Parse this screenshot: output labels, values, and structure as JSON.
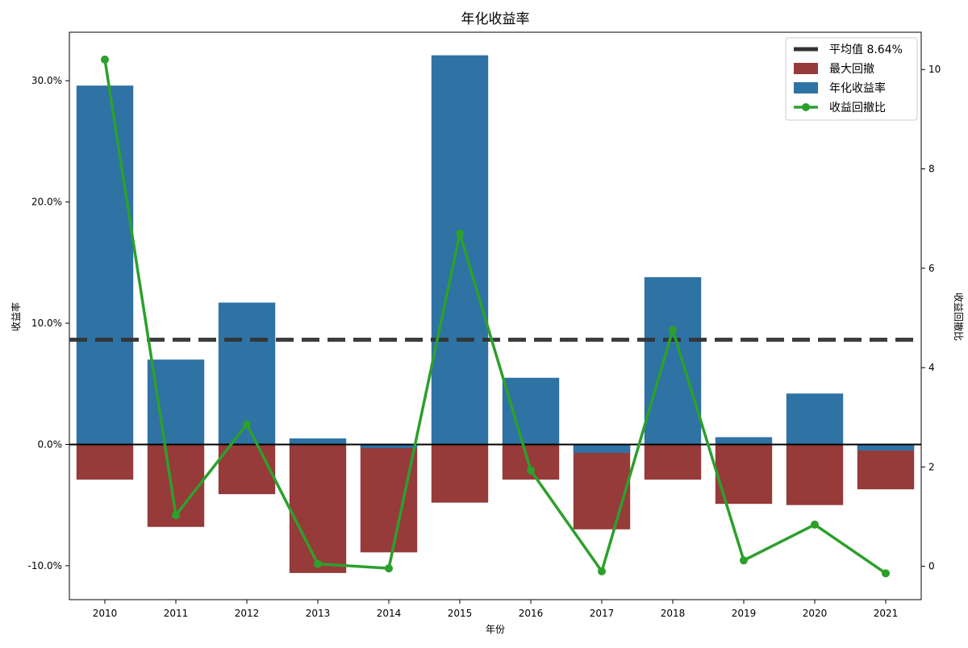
{
  "chart_data": {
    "type": "bar",
    "title": "年化收益率",
    "xlabel": "年份",
    "ylabel": "收益率",
    "y2label": "收益回撤比",
    "categories": [
      "2010",
      "2011",
      "2012",
      "2013",
      "2014",
      "2015",
      "2016",
      "2017",
      "2018",
      "2019",
      "2020",
      "2021"
    ],
    "ylim": [
      -12.8,
      34.0
    ],
    "y2lim": [
      -0.67,
      10.75
    ],
    "yticks": [
      -10,
      0,
      10,
      20,
      30
    ],
    "ytick_labels": [
      "-10.0%",
      "0.0%",
      "10.0%",
      "20.0%",
      "30.0%"
    ],
    "y2ticks": [
      0,
      2,
      4,
      6,
      8,
      10
    ],
    "series": [
      {
        "name": "最大回撤",
        "kind": "bar",
        "axis": "left",
        "color": "#963a3a",
        "values": [
          -2.9,
          -6.8,
          -4.1,
          -10.6,
          -8.9,
          -4.8,
          -2.9,
          -7.0,
          -2.9,
          -4.9,
          -5.0,
          -3.7
        ]
      },
      {
        "name": "年化收益率",
        "kind": "bar",
        "axis": "left",
        "color": "#2f72a4",
        "values": [
          29.6,
          7.0,
          11.7,
          0.5,
          -0.3,
          32.1,
          5.5,
          -0.7,
          13.8,
          0.6,
          4.2,
          -0.5
        ]
      },
      {
        "name": "收益回撤比",
        "kind": "line",
        "axis": "right",
        "color": "#2ca02c",
        "values": [
          10.2,
          1.03,
          2.86,
          0.05,
          -0.04,
          6.7,
          1.93,
          -0.1,
          4.76,
          0.12,
          0.84,
          -0.14
        ]
      }
    ],
    "reference_line": {
      "name": "平均值 8.64%",
      "value": 8.64,
      "color": "#333333",
      "style": "dashed"
    },
    "legend_position": "top-right",
    "grid": false
  }
}
